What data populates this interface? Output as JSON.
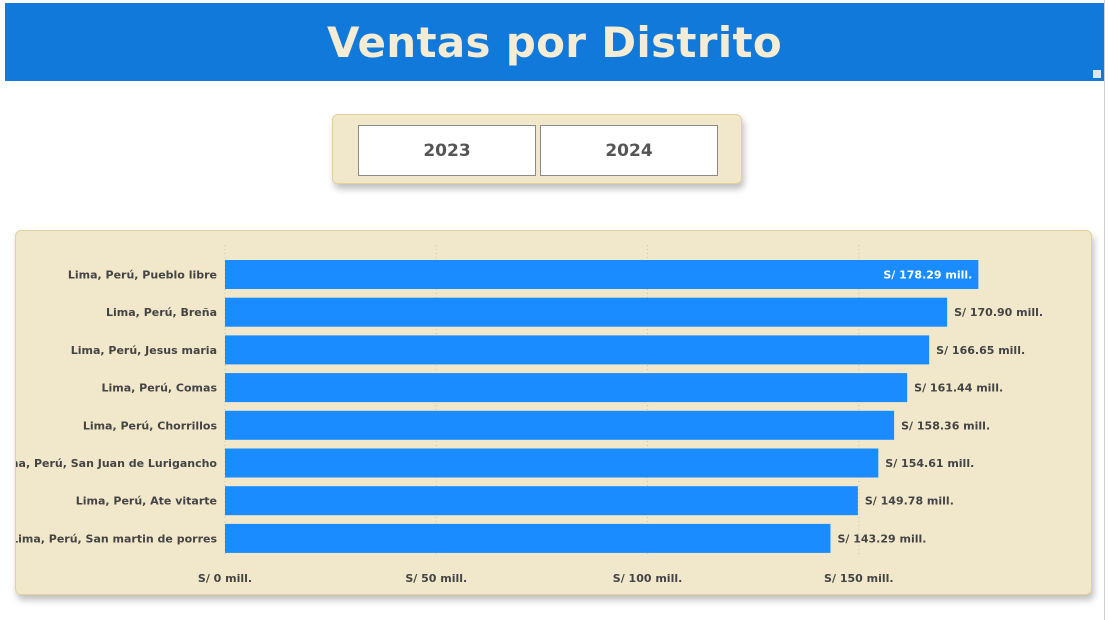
{
  "header": {
    "title": "Ventas por Distrito"
  },
  "year_filter": {
    "buttons": [
      "2023",
      "2024"
    ]
  },
  "colors": {
    "header_bg": "#1179d9",
    "title_text": "#f4ecd4",
    "panel_bg": "#f1e8cc",
    "bar": "#1a8cff"
  },
  "chart_data": {
    "type": "bar",
    "orientation": "horizontal",
    "categories": [
      "Lima, Perú, Pueblo libre",
      "Lima, Perú, Breña",
      "Lima, Perú, Jesus maria",
      "Lima, Perú, Comas",
      "Lima, Perú, Chorrillos",
      "Lima, Perú, San Juan de Lurigancho",
      "Lima, Perú, Ate vitarte",
      "Lima, Perú, San martin de porres"
    ],
    "values": [
      178.29,
      170.9,
      166.65,
      161.44,
      158.36,
      154.61,
      149.78,
      143.29
    ],
    "data_labels": [
      "S/ 178.29 mill.",
      "S/ 170.90 mill.",
      "S/ 166.65 mill.",
      "S/ 161.44 mill.",
      "S/ 158.36 mill.",
      "S/ 154.61 mill.",
      "S/ 149.78 mill.",
      "S/ 143.29 mill."
    ],
    "x_ticks": [
      0,
      50,
      100,
      150
    ],
    "x_tick_labels": [
      "S/ 0 mill.",
      "S/ 50 mill.",
      "S/ 100 mill.",
      "S/ 150 mill."
    ],
    "xlim": [
      0,
      200
    ],
    "grid": "vertical dotted",
    "title": "",
    "xlabel": "",
    "ylabel": ""
  }
}
